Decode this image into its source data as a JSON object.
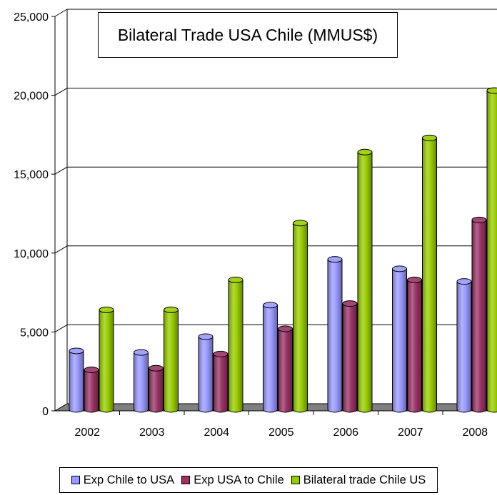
{
  "chart_data": {
    "type": "bar",
    "title": "Bilateral Trade USA Chile (MMUS$)",
    "categories": [
      "2002",
      "2003",
      "2004",
      "2005",
      "2006",
      "2007",
      "2008"
    ],
    "ylim": [
      0,
      25000
    ],
    "yticks": [
      "0",
      "5,000",
      "10,000",
      "15,000",
      "20,000",
      "25,000"
    ],
    "ytick_values": [
      0,
      5000,
      10000,
      15000,
      20000,
      25000
    ],
    "grid": true,
    "legend_position": "bottom",
    "series": [
      {
        "name": "Exp Chile to USA",
        "color": "#9999ff",
        "values": [
          3800,
          3700,
          4700,
          6700,
          9600,
          9000,
          8200
        ]
      },
      {
        "name": "Exp USA to Chile",
        "color": "#993366",
        "values": [
          2600,
          2700,
          3600,
          5200,
          6800,
          8300,
          12100
        ]
      },
      {
        "name": "Bilateral trade Chile US",
        "color": "#99cc00",
        "values": [
          6400,
          6400,
          8300,
          11900,
          16400,
          17300,
          20300
        ]
      }
    ]
  }
}
